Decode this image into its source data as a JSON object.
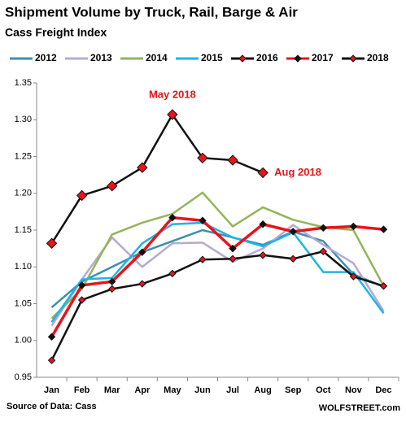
{
  "chart_data": {
    "type": "line",
    "title": "Shipment Volume by Truck, Rail, Barge & Air",
    "subtitle": "Cass Freight Index",
    "source": "Source of Data: Cass",
    "brand": "WOLFSTREET.com",
    "annotations": [
      "May 2018",
      "Aug 2018"
    ],
    "categories": [
      "Jan",
      "Feb",
      "Mar",
      "Apr",
      "May",
      "Jun",
      "Jul",
      "Aug",
      "Sep",
      "Oct",
      "Nov",
      "Dec"
    ],
    "series": [
      {
        "name": "2012",
        "color": "#3a8fb0",
        "marker_color": null,
        "values": [
          1.045,
          1.08,
          1.1,
          1.12,
          1.135,
          1.15,
          1.14,
          1.13,
          1.148,
          1.135,
          1.09,
          1.073
        ]
      },
      {
        "name": "2013",
        "color": "#b7a9d4",
        "marker_color": null,
        "values": [
          1.02,
          1.083,
          1.14,
          1.1,
          1.132,
          1.133,
          1.107,
          1.125,
          1.157,
          1.13,
          1.105,
          1.04
        ]
      },
      {
        "name": "2014",
        "color": "#93b55a",
        "marker_color": null,
        "values": [
          1.03,
          1.07,
          1.144,
          1.16,
          1.172,
          1.201,
          1.155,
          1.181,
          1.164,
          1.154,
          1.15,
          1.074
        ]
      },
      {
        "name": "2015",
        "color": "#1fb4e6",
        "marker_color": null,
        "values": [
          1.025,
          1.083,
          1.085,
          1.132,
          1.158,
          1.16,
          1.14,
          1.128,
          1.147,
          1.093,
          1.093,
          1.037
        ]
      },
      {
        "name": "2016",
        "color": "#111111",
        "marker_color": "#e8141b",
        "values": [
          0.973,
          1.055,
          1.07,
          1.077,
          1.091,
          1.11,
          1.111,
          1.116,
          1.111,
          1.121,
          1.087,
          1.074
        ]
      },
      {
        "name": "2017",
        "color": "#e8141b",
        "marker_color": "#111111",
        "values": [
          1.005,
          1.075,
          1.08,
          1.12,
          1.167,
          1.163,
          1.125,
          1.158,
          1.148,
          1.153,
          1.155,
          1.151
        ]
      },
      {
        "name": "2018",
        "color": "#111111",
        "marker_color": "#e8141b",
        "values": [
          1.132,
          1.197,
          1.21,
          1.235,
          1.307,
          1.248,
          1.245,
          1.228,
          null,
          null,
          null,
          null
        ]
      }
    ],
    "ylim": [
      0.95,
      1.35
    ],
    "yticks": [
      0.95,
      {
        "value": 1.0,
        "label": "1.00"
      },
      1.05,
      {
        "value": 1.1,
        "label": "1.10"
      },
      1.15,
      {
        "value": 1.2,
        "label": "1.20"
      },
      1.25,
      {
        "value": 1.3,
        "label": "1.30"
      },
      1.35
    ],
    "grid": false
  }
}
